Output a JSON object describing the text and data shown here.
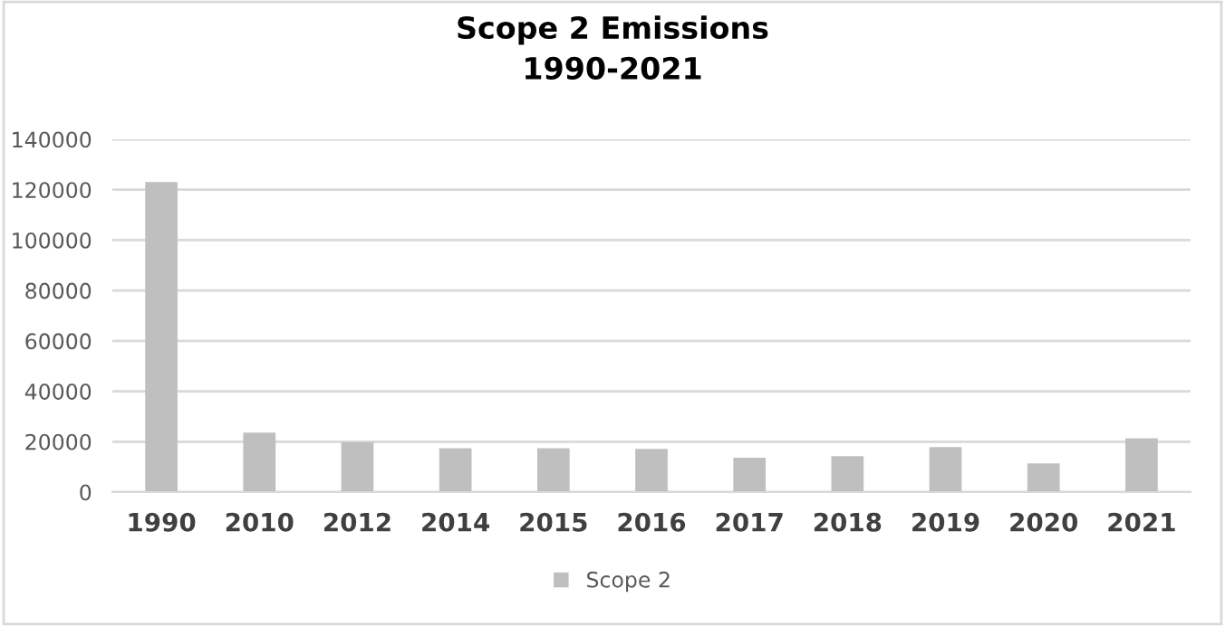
{
  "chart_data": {
    "type": "bar",
    "title": "Scope 2 Emissions\n1990-2021",
    "categories": [
      "1990",
      "2010",
      "2012",
      "2014",
      "2015",
      "2016",
      "2017",
      "2018",
      "2019",
      "2020",
      "2021"
    ],
    "series": [
      {
        "name": "Scope 2",
        "color": "#bfbfbf",
        "values": [
          123000,
          23600,
          19800,
          17400,
          17400,
          17100,
          13600,
          14300,
          17900,
          11400,
          21400
        ]
      }
    ],
    "ylim": [
      0,
      140000
    ],
    "yticks": [
      0,
      20000,
      40000,
      60000,
      80000,
      100000,
      120000,
      140000
    ],
    "grid": "y",
    "legend": "bottom"
  }
}
